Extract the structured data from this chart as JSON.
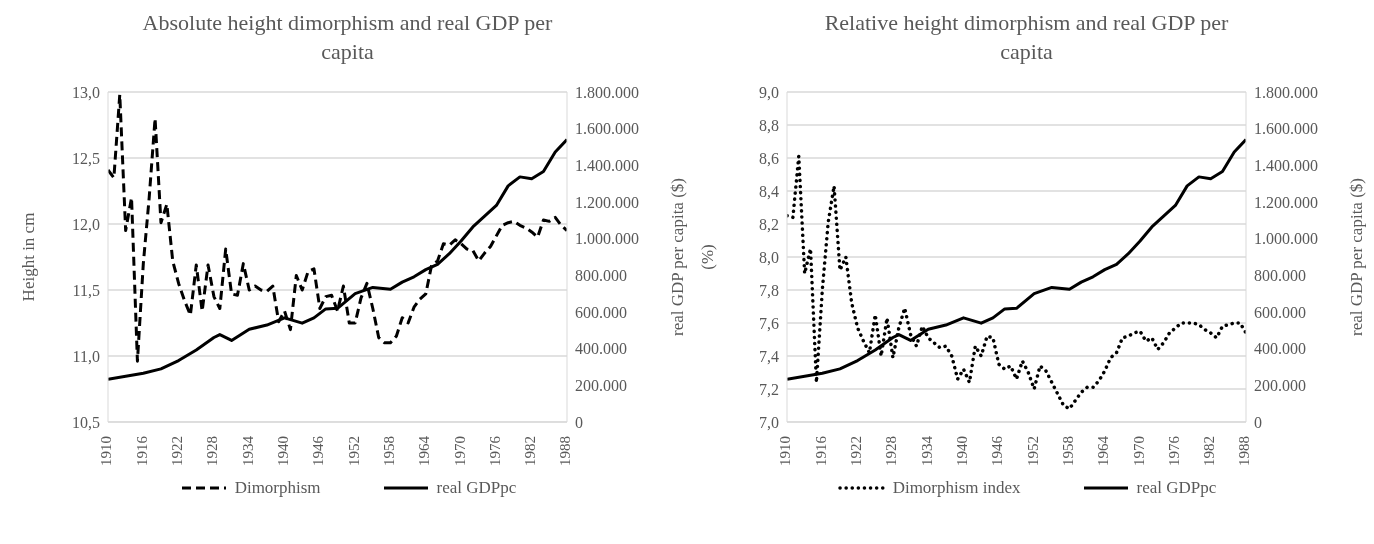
{
  "chart_data": [
    {
      "type": "line",
      "title": "Absolute height dimorphism and real GDP per capita",
      "ylabel": "Height in cm",
      "y2label": "real GDP per capita ($)",
      "xlim": [
        1910,
        1988
      ],
      "xticks": [
        1910,
        1916,
        1922,
        1928,
        1934,
        1940,
        1946,
        1952,
        1958,
        1964,
        1970,
        1976,
        1982,
        1988
      ],
      "ylim": [
        10.5,
        13.0
      ],
      "yticks": [
        {
          "value": 10.5,
          "label": "10,5"
        },
        {
          "value": 11.0,
          "label": "11,0"
        },
        {
          "value": 11.5,
          "label": "11,5"
        },
        {
          "value": 12.0,
          "label": "12,0"
        },
        {
          "value": 12.5,
          "label": "12,5"
        },
        {
          "value": 13.0,
          "label": "13,0"
        }
      ],
      "y2lim": [
        0,
        1800000
      ],
      "y2ticks": [
        0,
        {
          "value": 200000,
          "label": "200.000"
        },
        {
          "value": 400000,
          "label": "400.000"
        },
        {
          "value": 600000,
          "label": "600.000"
        },
        {
          "value": 800000,
          "label": "800.000"
        },
        {
          "value": 1000000,
          "label": "1.000.000"
        },
        {
          "value": 1200000,
          "label": "1.200.000"
        },
        {
          "value": 1400000,
          "label": "1.400.000"
        },
        {
          "value": 1600000,
          "label": "1.600.000"
        },
        {
          "value": 1800000,
          "label": "1.800.000"
        }
      ],
      "grid": "y",
      "legend": "bottom",
      "series": [
        {
          "name": "Dimorphism",
          "color": "#000000",
          "line_style": "dashed",
          "x": [
            1910,
            1911,
            1912,
            1913,
            1914,
            1915,
            1916,
            1917,
            1918,
            1919,
            1920,
            1921,
            1922,
            1923,
            1924,
            1925,
            1926,
            1927,
            1928,
            1929,
            1930,
            1931,
            1932,
            1933,
            1934,
            1935,
            1936,
            1937,
            1938,
            1939,
            1940,
            1941,
            1942,
            1943,
            1944,
            1945,
            1946,
            1947,
            1948,
            1949,
            1950,
            1951,
            1952,
            1953,
            1954,
            1955,
            1956,
            1957,
            1958,
            1959,
            1960,
            1961,
            1962,
            1963,
            1964,
            1965,
            1966,
            1967,
            1968,
            1969,
            1970,
            1971,
            1972,
            1973,
            1974,
            1975,
            1976,
            1977,
            1978,
            1979,
            1980,
            1981,
            1982,
            1983,
            1984,
            1985,
            1986,
            1987,
            1988
          ],
          "values": [
            12.41,
            12.35,
            12.98,
            11.95,
            12.2,
            10.96,
            11.7,
            12.2,
            12.8,
            12.01,
            12.15,
            11.72,
            11.55,
            11.42,
            11.31,
            11.69,
            11.34,
            11.69,
            11.45,
            11.36,
            11.81,
            11.47,
            11.46,
            11.7,
            11.5,
            11.53,
            11.5,
            11.49,
            11.53,
            11.26,
            11.34,
            11.2,
            11.61,
            11.5,
            11.64,
            11.66,
            11.36,
            11.45,
            11.46,
            11.34,
            11.53,
            11.25,
            11.25,
            11.44,
            11.55,
            11.36,
            11.14,
            11.1,
            11.1,
            11.15,
            11.29,
            11.25,
            11.37,
            11.43,
            11.47,
            11.69,
            11.72,
            11.85,
            11.84,
            11.88,
            11.85,
            11.81,
            11.8,
            11.72,
            11.78,
            11.83,
            11.91,
            11.99,
            12.01,
            12.02,
            11.99,
            11.97,
            11.94,
            11.9,
            12.03,
            12.02,
            12.05,
            11.99,
            11.95
          ]
        },
        {
          "name": "real GDPpc",
          "color": "#000000",
          "line_style": "solid",
          "axis": "y2",
          "x": [
            1910,
            1916,
            1919,
            1922,
            1925,
            1928,
            1929,
            1931,
            1934,
            1937,
            1940,
            1943,
            1945,
            1947,
            1949,
            1952,
            1955,
            1958,
            1960,
            1962,
            1964,
            1966,
            1968,
            1970,
            1972,
            1974,
            1976,
            1978,
            1980,
            1982,
            1984,
            1986,
            1988
          ],
          "values": [
            233000,
            266000,
            290000,
            335000,
            393000,
            461000,
            477000,
            445000,
            506000,
            529000,
            568000,
            539000,
            568000,
            617000,
            620000,
            700000,
            734000,
            724000,
            763000,
            792000,
            831000,
            860000,
            918000,
            987000,
            1064000,
            1123000,
            1181000,
            1288000,
            1337000,
            1327000,
            1366000,
            1473000,
            1541000
          ]
        }
      ]
    },
    {
      "type": "line",
      "title": "Relative height dimorphism and real GDP per capita",
      "ylabel": "(%)",
      "y2label": "real GDP per capita ($)",
      "xlim": [
        1910,
        1988
      ],
      "xticks": [
        1910,
        1916,
        1922,
        1928,
        1934,
        1940,
        1946,
        1952,
        1958,
        1964,
        1970,
        1976,
        1982,
        1988
      ],
      "ylim": [
        7.0,
        9.0
      ],
      "yticks": [
        {
          "value": 7.0,
          "label": "7,0"
        },
        {
          "value": 7.2,
          "label": "7,2"
        },
        {
          "value": 7.4,
          "label": "7,4"
        },
        {
          "value": 7.6,
          "label": "7,6"
        },
        {
          "value": 7.8,
          "label": "7,8"
        },
        {
          "value": 8.0,
          "label": "8,0"
        },
        {
          "value": 8.2,
          "label": "8,2"
        },
        {
          "value": 8.4,
          "label": "8,4"
        },
        {
          "value": 8.6,
          "label": "8,6"
        },
        {
          "value": 8.8,
          "label": "8,8"
        },
        {
          "value": 9.0,
          "label": "9,0"
        }
      ],
      "y2lim": [
        0,
        1800000
      ],
      "y2ticks": [
        0,
        {
          "value": 200000,
          "label": "200.000"
        },
        {
          "value": 400000,
          "label": "400.000"
        },
        {
          "value": 600000,
          "label": "600.000"
        },
        {
          "value": 800000,
          "label": "800.000"
        },
        {
          "value": 1000000,
          "label": "1.000.000"
        },
        {
          "value": 1200000,
          "label": "1.200.000"
        },
        {
          "value": 1400000,
          "label": "1.400.000"
        },
        {
          "value": 1600000,
          "label": "1.600.000"
        },
        {
          "value": 1800000,
          "label": "1.800.000"
        }
      ],
      "grid": "y",
      "legend": "bottom",
      "series": [
        {
          "name": "Dimorphism index",
          "color": "#000000",
          "line_style": "dotted",
          "x": [
            1910,
            1911,
            1912,
            1913,
            1914,
            1915,
            1916,
            1917,
            1918,
            1919,
            1920,
            1921,
            1922,
            1923,
            1924,
            1925,
            1926,
            1927,
            1928,
            1929,
            1930,
            1931,
            1932,
            1933,
            1934,
            1935,
            1936,
            1937,
            1938,
            1939,
            1940,
            1941,
            1942,
            1943,
            1944,
            1945,
            1946,
            1947,
            1948,
            1949,
            1950,
            1951,
            1952,
            1953,
            1954,
            1955,
            1956,
            1957,
            1958,
            1959,
            1960,
            1961,
            1962,
            1963,
            1964,
            1965,
            1966,
            1967,
            1968,
            1969,
            1970,
            1971,
            1972,
            1973,
            1974,
            1975,
            1976,
            1977,
            1978,
            1979,
            1980,
            1981,
            1982,
            1983,
            1984,
            1985,
            1986,
            1987,
            1988
          ],
          "values": [
            8.25,
            8.24,
            8.61,
            7.9,
            8.05,
            7.24,
            7.8,
            8.21,
            8.43,
            7.92,
            8.0,
            7.72,
            7.57,
            7.49,
            7.42,
            7.65,
            7.4,
            7.63,
            7.39,
            7.57,
            7.69,
            7.53,
            7.46,
            7.58,
            7.51,
            7.48,
            7.45,
            7.46,
            7.4,
            7.26,
            7.32,
            7.24,
            7.46,
            7.4,
            7.52,
            7.51,
            7.35,
            7.32,
            7.34,
            7.26,
            7.37,
            7.3,
            7.2,
            7.34,
            7.31,
            7.24,
            7.17,
            7.1,
            7.08,
            7.13,
            7.18,
            7.21,
            7.21,
            7.25,
            7.31,
            7.39,
            7.42,
            7.51,
            7.52,
            7.54,
            7.55,
            7.49,
            7.51,
            7.44,
            7.48,
            7.54,
            7.57,
            7.6,
            7.6,
            7.6,
            7.59,
            7.56,
            7.54,
            7.51,
            7.58,
            7.59,
            7.6,
            7.6,
            7.54
          ]
        },
        {
          "name": "real GDPpc",
          "color": "#000000",
          "line_style": "solid",
          "axis": "y2",
          "x": [
            1910,
            1916,
            1919,
            1922,
            1925,
            1928,
            1929,
            1931,
            1934,
            1937,
            1940,
            1943,
            1945,
            1947,
            1949,
            1952,
            1955,
            1958,
            1960,
            1962,
            1964,
            1966,
            1968,
            1970,
            1972,
            1974,
            1976,
            1978,
            1980,
            1982,
            1984,
            1986,
            1988
          ],
          "values": [
            233000,
            266000,
            290000,
            335000,
            393000,
            461000,
            477000,
            445000,
            506000,
            529000,
            568000,
            539000,
            568000,
            617000,
            620000,
            700000,
            734000,
            724000,
            763000,
            792000,
            831000,
            860000,
            918000,
            987000,
            1064000,
            1123000,
            1181000,
            1288000,
            1337000,
            1327000,
            1366000,
            1473000,
            1541000
          ]
        }
      ]
    }
  ]
}
